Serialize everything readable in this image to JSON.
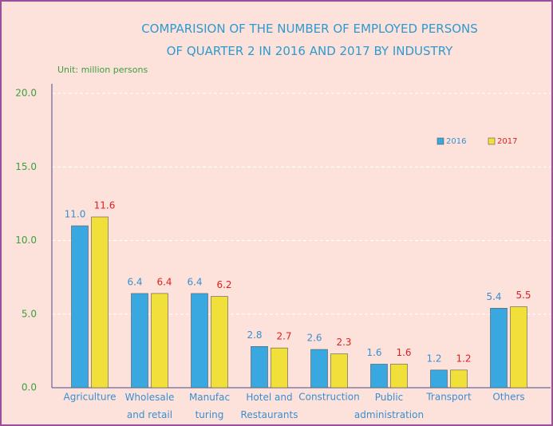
{
  "chart_data": {
    "type": "bar",
    "title": "COMPARISION OF THE  NUMBER OF EMPLOYED PERSONS\nOF QUARTER 2  IN 2016 AND 2017  BY INDUSTRY",
    "y_axis_label": "Unit: million persons",
    "categories": [
      "Agriculture",
      "Wholesale\nand retail",
      "Manufac\nturing",
      "Hotel and\nRestaurants",
      "Construction",
      "Public\nadministration",
      "Transport",
      "Others"
    ],
    "series": [
      {
        "name": "2016",
        "color": "#3aa8e0",
        "label_color": "#3a8ed0",
        "values": [
          11.0,
          6.4,
          6.4,
          2.8,
          2.6,
          1.6,
          1.2,
          5.4
        ],
        "value_labels": [
          "11.0",
          "6.4",
          "6.4",
          "2.8",
          "2.6",
          "1.6",
          "1.2",
          "5.4"
        ]
      },
      {
        "name": "2017",
        "color": "#f2e03a",
        "label_color": "#e02020",
        "values": [
          11.6,
          6.4,
          6.2,
          2.7,
          2.3,
          1.6,
          1.2,
          5.5
        ],
        "value_labels": [
          "11.6",
          "6.4",
          "6.2",
          "2.7",
          "2.3",
          "1.6",
          "1.2",
          "5.5"
        ]
      }
    ],
    "ylim": [
      0,
      20
    ],
    "yticks": [
      {
        "value": 0,
        "label": "0.0"
      },
      {
        "value": 5,
        "label": "5.0"
      },
      {
        "value": 10,
        "label": "10.0"
      },
      {
        "value": 15,
        "label": "15.0"
      },
      {
        "value": 20,
        "label": "20.0"
      }
    ],
    "grid": true,
    "legend": "upper right"
  }
}
